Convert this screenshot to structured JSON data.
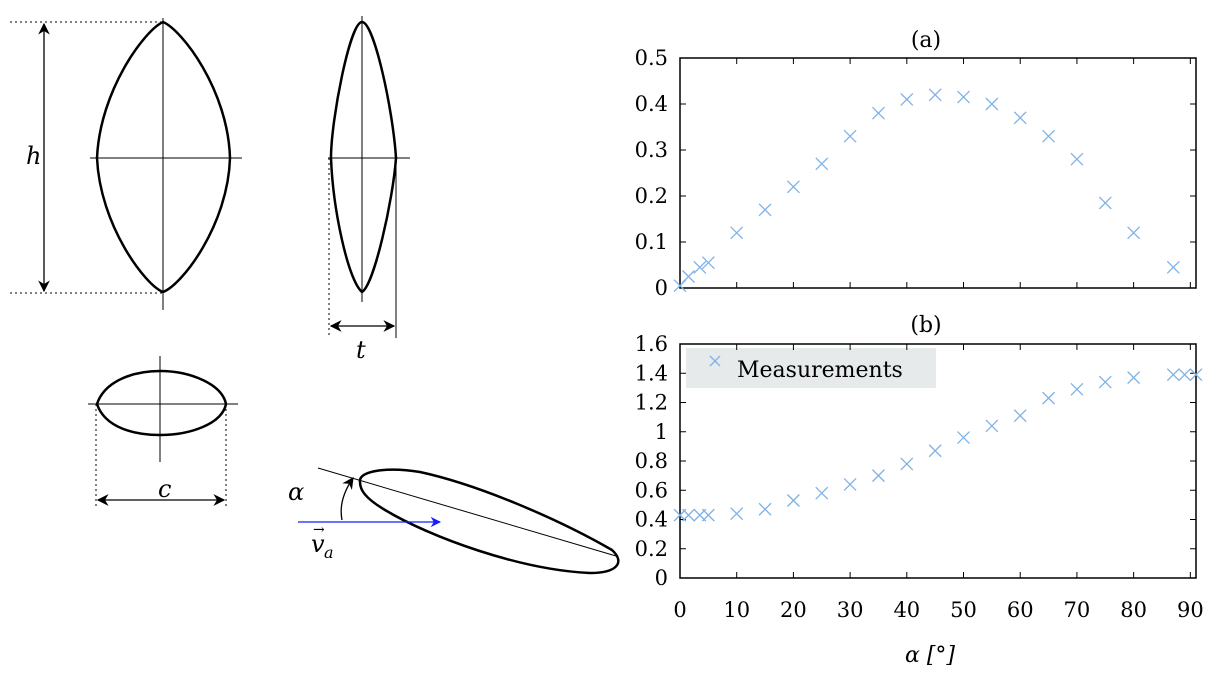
{
  "diagram": {
    "labels": {
      "height": "h",
      "thickness": "t",
      "chord": "c",
      "angle": "α",
      "velocity_base": "v",
      "velocity_sub": "a",
      "velocity_arrow": "→"
    },
    "colors": {
      "outline": "#000000",
      "velocity": "#1a1aff"
    }
  },
  "chart_data": [
    {
      "type": "scatter",
      "title": "(a)",
      "xlabel": "",
      "ylabel": "",
      "xlim": [
        0,
        91
      ],
      "ylim": [
        0,
        0.5
      ],
      "xticks": [
        0,
        10,
        20,
        30,
        40,
        50,
        60,
        70,
        80,
        90
      ],
      "yticks": [
        "0",
        "0.1",
        "0.2",
        "0.3",
        "0.4",
        "0.5"
      ],
      "show_xtick_labels": false,
      "grid": false,
      "marker": "x",
      "color": "#7fb2e5",
      "series": [
        {
          "x": [
            0,
            1.5,
            3.5,
            5,
            10,
            15,
            20,
            25,
            30,
            35,
            40,
            45,
            50,
            55,
            60,
            65,
            70,
            75,
            80,
            87
          ],
          "y": [
            0.005,
            0.025,
            0.045,
            0.055,
            0.12,
            0.17,
            0.22,
            0.27,
            0.33,
            0.38,
            0.41,
            0.42,
            0.415,
            0.4,
            0.37,
            0.33,
            0.28,
            0.185,
            0.12,
            0.045
          ]
        }
      ]
    },
    {
      "type": "scatter",
      "title": "(b)",
      "xlabel": "α [°]",
      "ylabel": "",
      "xlim": [
        0,
        91
      ],
      "ylim": [
        0,
        1.6
      ],
      "xticks": [
        "0",
        "10",
        "20",
        "30",
        "40",
        "50",
        "60",
        "70",
        "80",
        "90"
      ],
      "yticks": [
        "0",
        "0.2",
        "0.4",
        "0.6",
        "0.8",
        "1",
        "1.2",
        "1.4",
        "1.6"
      ],
      "show_xtick_labels": true,
      "grid": false,
      "marker": "x",
      "color": "#7fb2e5",
      "legend": {
        "position": "top-left",
        "entries": [
          "Measurements"
        ],
        "background": "#e6eaea"
      },
      "series": [
        {
          "name": "Measurements",
          "x": [
            0,
            1.5,
            3.5,
            5,
            10,
            15,
            20,
            25,
            30,
            35,
            40,
            45,
            50,
            55,
            60,
            65,
            70,
            75,
            80,
            87,
            89,
            91
          ],
          "y": [
            0.43,
            0.43,
            0.43,
            0.43,
            0.44,
            0.47,
            0.53,
            0.58,
            0.64,
            0.7,
            0.78,
            0.87,
            0.96,
            1.04,
            1.11,
            1.23,
            1.29,
            1.34,
            1.37,
            1.39,
            1.39,
            1.39
          ]
        }
      ]
    }
  ]
}
